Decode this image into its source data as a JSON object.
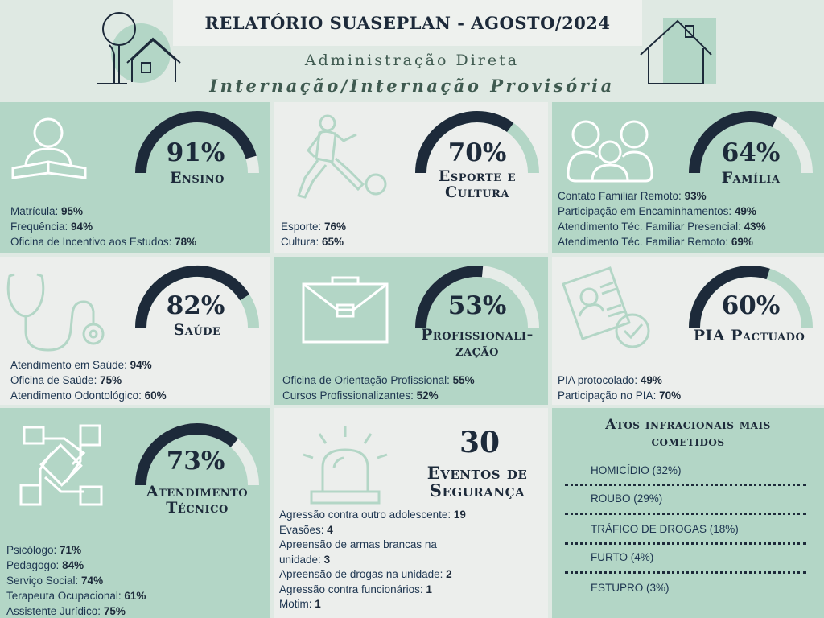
{
  "header": {
    "title": "RELATÓRIO SUASEPLAN - AGOSTO/2024",
    "subtitle1": "Administração Direta",
    "subtitle2": "Internação/Internação Provisória"
  },
  "colors": {
    "green_panel": "#b3d6c6",
    "light_panel": "#eceeec",
    "gauge_dark": "#1d2a3a",
    "gauge_track": "#e6ece8",
    "gauge_track_green": "#b3d6c6"
  },
  "panels": {
    "ensino": {
      "percent": "91%",
      "value": 91,
      "category": "Ensino",
      "icon": "reading-book-icon",
      "items": [
        {
          "label": "Matrícula: ",
          "value": "95%"
        },
        {
          "label": "Frequência: ",
          "value": "94%"
        },
        {
          "label": "Oficina de Incentivo aos Estudos: ",
          "value": "78%"
        }
      ]
    },
    "esporte": {
      "percent": "70%",
      "value": 70,
      "category_line1": "Esporte e",
      "category_line2": "Cultura",
      "icon": "soccer-player-icon",
      "items": [
        {
          "label": "Esporte: ",
          "value": "76%"
        },
        {
          "label": "Cultura: ",
          "value": "65%"
        }
      ]
    },
    "familia": {
      "percent": "64%",
      "value": 64,
      "category": "Família",
      "icon": "family-icon",
      "items": [
        {
          "label": "Contato Familiar Remoto: ",
          "value": "93%"
        },
        {
          "label": "Participação em Encaminhamentos: ",
          "value": "49%"
        },
        {
          "label": "Atendimento Téc. Familiar Presencial: ",
          "value": "43%"
        },
        {
          "label": "Atendimento Téc. Familiar Remoto: ",
          "value": "69%"
        }
      ]
    },
    "saude": {
      "percent": "82%",
      "value": 82,
      "category": "Saúde",
      "icon": "stethoscope-icon",
      "items": [
        {
          "label": "Atendimento em Saúde: ",
          "value": "94%"
        },
        {
          "label": "Oficina de Saúde: ",
          "value": "75%"
        },
        {
          "label": "Atendimento Odontológico: ",
          "value": "60%"
        }
      ]
    },
    "profissional": {
      "percent": "53%",
      "value": 53,
      "category_line1": "Profissionali-",
      "category_line2": "zação",
      "icon": "briefcase-icon",
      "items": [
        {
          "label": "Oficina de Orientação Profissional: ",
          "value": "55%"
        },
        {
          "label": "Cursos Profissionalizantes: ",
          "value": "52%"
        }
      ]
    },
    "pia": {
      "percent": "60%",
      "value": 60,
      "category": "PIA Pactuado",
      "icon": "document-check-icon",
      "items": [
        {
          "label": "PIA protocolado: ",
          "value": "49%"
        },
        {
          "label": "Participação no PIA: ",
          "value": "70%"
        }
      ]
    },
    "atendimento": {
      "percent": "73%",
      "value": 73,
      "category_line1": "Atendimento",
      "category_line2": "Técnico",
      "icon": "joined-hands-icon",
      "items": [
        {
          "label": "Psicólogo: ",
          "value": "71%"
        },
        {
          "label": "Pedagogo: ",
          "value": "84%"
        },
        {
          "label": "Serviço Social: ",
          "value": "74%"
        },
        {
          "label": "Terapeuta Ocupacional: ",
          "value": "61%"
        },
        {
          "label": "Assistente Jurídico: ",
          "value": "75%"
        }
      ]
    },
    "seguranca": {
      "count": "30",
      "category_line1": "Eventos de",
      "category_line2": "Segurança",
      "icon": "siren-icon",
      "items": [
        {
          "label": "Agressão contra outro adolescente: ",
          "value": "19"
        },
        {
          "label": "Evasões: ",
          "value": "4"
        },
        {
          "label": "Apreensão de armas brancas na",
          "value": ""
        },
        {
          "label": "unidade: ",
          "value": "3"
        },
        {
          "label": "Apreensão de drogas na unidade: ",
          "value": "2"
        },
        {
          "label": "Agressão contra funcionários: ",
          "value": "1"
        },
        {
          "label": "Motim: ",
          "value": "1"
        }
      ]
    }
  },
  "atos": {
    "title_line1": "Atos infracionais mais",
    "title_line2": "cometidos",
    "items": [
      "HOMICÍDIO (32%)",
      "ROUBO (29%)",
      "TRÁFICO DE DROGAS (18%)",
      "FURTO (4%)",
      "ESTUPRO (3%)"
    ]
  }
}
